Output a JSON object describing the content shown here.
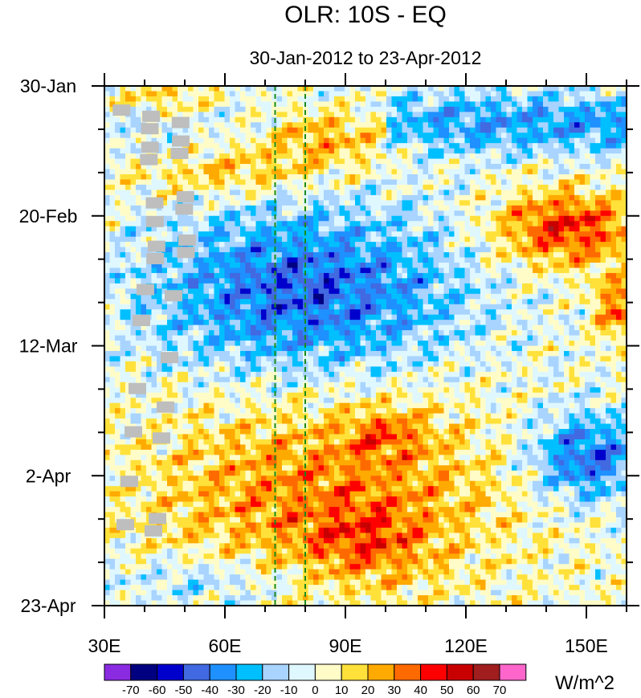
{
  "chart_data": {
    "type": "heatmap",
    "title": "OLR: 10S - EQ",
    "subtitle": "30-Jan-2012 to 23-Apr-2012",
    "x_axis": {
      "range": [
        30,
        160
      ],
      "unit": "degrees east longitude",
      "tick_values": [
        30,
        60,
        90,
        120,
        150
      ],
      "tick_labels": [
        "30E",
        "60E",
        "90E",
        "120E",
        "150E"
      ],
      "minor_tick_step": 10
    },
    "y_axis": {
      "range_days": [
        0,
        84
      ],
      "direction": "time increases downward",
      "tick_days": [
        0,
        21,
        42,
        63,
        84
      ],
      "tick_labels": [
        "30-Jan",
        "20-Feb",
        "12-Mar",
        "2-Apr",
        "23-Apr"
      ],
      "minor_tick_step_days": 7
    },
    "reference_lines": [
      {
        "lon": 72.5,
        "style": "dashed",
        "color": "#1a8a1a"
      },
      {
        "lon": 80,
        "style": "dashed",
        "color": "#1a8a1a"
      }
    ],
    "colorbar": {
      "unit_label": "W/m^2",
      "levels": [
        "-70",
        "-60",
        "-50",
        "-40",
        "-30",
        "-20",
        "-10",
        "0",
        "10",
        "20",
        "30",
        "40",
        "50",
        "60",
        "70"
      ],
      "colors": [
        "#8a2be2",
        "#000080",
        "#0000cd",
        "#4169e1",
        "#1e90ff",
        "#00bfff",
        "#a8d4ff",
        "#dff7ff",
        "#fffcc8",
        "#ffe13a",
        "#ffaa00",
        "#ff6a00",
        "#ff0000",
        "#c80000",
        "#a01e1e",
        "#ff66cc"
      ]
    },
    "missing_color": "#bebebe",
    "anomaly_features": [
      {
        "region": "east of 100E",
        "days": [
          0,
          14
        ],
        "anomaly": "negative",
        "strength": -30
      },
      {
        "region": "70E-100E",
        "days": [
          3,
          13
        ],
        "anomaly": "positive",
        "strength": 30
      },
      {
        "region": "40E-110E",
        "days": [
          19,
          49
        ],
        "anomaly": "negative",
        "strength": -45
      },
      {
        "region": "120E-160E",
        "days": [
          16,
          30
        ],
        "anomaly": "positive",
        "strength": 45
      },
      {
        "region": "40E-130E",
        "days": [
          51,
          84
        ],
        "anomaly": "positive",
        "strength": 30
      },
      {
        "region": "130E-160E",
        "days": [
          52,
          66
        ],
        "anomaly": "negative",
        "strength": -45
      }
    ],
    "missing_data": [
      {
        "lon_range": [
          31,
          49
        ],
        "day_range": [
          1,
          75
        ]
      }
    ]
  }
}
